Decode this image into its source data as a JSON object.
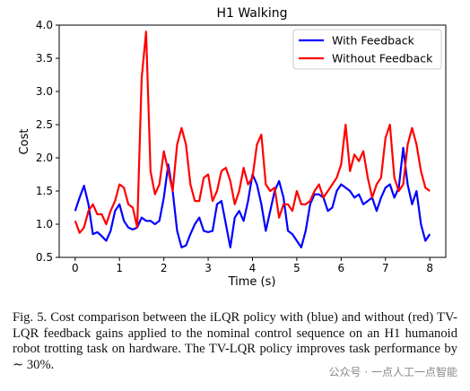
{
  "chart_data": {
    "type": "line",
    "title": "H1 Walking",
    "x_label": "Time (s)",
    "y_label": "Cost",
    "x": [
      0,
      0.1,
      0.2,
      0.3,
      0.4,
      0.5,
      0.6,
      0.7,
      0.8,
      0.9,
      1,
      1.1,
      1.2,
      1.3,
      1.4,
      1.5,
      1.6,
      1.7,
      1.8,
      1.9,
      2,
      2.1,
      2.2,
      2.3,
      2.4,
      2.5,
      2.6,
      2.7,
      2.8,
      2.9,
      3,
      3.1,
      3.2,
      3.3,
      3.4,
      3.5,
      3.6,
      3.7,
      3.8,
      3.9,
      4,
      4.1,
      4.2,
      4.3,
      4.4,
      4.5,
      4.6,
      4.7,
      4.8,
      4.9,
      5,
      5.1,
      5.2,
      5.3,
      5.4,
      5.5,
      5.6,
      5.7,
      5.8,
      5.9,
      6,
      6.1,
      6.2,
      6.3,
      6.4,
      6.5,
      6.6,
      6.7,
      6.8,
      6.9,
      7,
      7.1,
      7.2,
      7.3,
      7.4,
      7.5,
      7.6,
      7.7,
      7.8,
      7.9,
      8
    ],
    "series": [
      {
        "name": "With Feedback",
        "color": "#0000ff",
        "values": [
          1.2,
          1.4,
          1.58,
          1.3,
          0.85,
          0.88,
          0.82,
          0.75,
          0.9,
          1.2,
          1.3,
          1.05,
          0.95,
          0.92,
          0.95,
          1.1,
          1.05,
          1.05,
          1.0,
          1.05,
          1.4,
          1.9,
          1.5,
          0.9,
          0.65,
          0.68,
          0.85,
          1.0,
          1.1,
          0.9,
          0.88,
          0.9,
          1.3,
          1.35,
          1.0,
          0.65,
          1.1,
          1.2,
          1.05,
          1.35,
          1.75,
          1.6,
          1.3,
          0.9,
          1.2,
          1.5,
          1.65,
          1.4,
          0.9,
          0.85,
          0.75,
          0.65,
          0.9,
          1.3,
          1.45,
          1.45,
          1.4,
          1.2,
          1.25,
          1.5,
          1.6,
          1.55,
          1.5,
          1.4,
          1.45,
          1.3,
          1.35,
          1.4,
          1.2,
          1.4,
          1.55,
          1.6,
          1.4,
          1.55,
          2.15,
          1.6,
          1.3,
          1.5,
          1.0,
          0.75,
          0.85
        ]
      },
      {
        "name": "Without Feedback",
        "color": "#ff0000",
        "values": [
          1.05,
          0.87,
          0.95,
          1.2,
          1.3,
          1.15,
          1.15,
          1.0,
          1.2,
          1.35,
          1.6,
          1.55,
          1.3,
          1.25,
          0.95,
          3.2,
          3.9,
          1.8,
          1.45,
          1.6,
          2.1,
          1.8,
          1.5,
          2.2,
          2.45,
          2.2,
          1.6,
          1.35,
          1.35,
          1.7,
          1.75,
          1.35,
          1.5,
          1.8,
          1.85,
          1.65,
          1.3,
          1.5,
          1.85,
          1.6,
          1.7,
          2.2,
          2.35,
          1.6,
          1.5,
          1.55,
          1.1,
          1.3,
          1.3,
          1.2,
          1.5,
          1.3,
          1.3,
          1.35,
          1.5,
          1.6,
          1.4,
          1.5,
          1.6,
          1.7,
          1.9,
          2.5,
          1.8,
          2.05,
          1.95,
          2.1,
          1.7,
          1.4,
          1.6,
          1.7,
          2.3,
          2.5,
          1.7,
          1.5,
          1.6,
          2.2,
          2.45,
          2.2,
          1.8,
          1.55,
          1.5
        ]
      }
    ],
    "xlim": [
      -0.36,
      8.36
    ],
    "ylim": [
      0.5,
      4.0
    ],
    "xticks": [
      0,
      1,
      2,
      3,
      4,
      5,
      6,
      7,
      8
    ],
    "yticks": [
      0.5,
      {
        "value": 1.0,
        "label": "1.0"
      },
      1.5,
      {
        "value": 2.0,
        "label": "2.0"
      },
      2.5,
      {
        "value": 3.0,
        "label": "3.0"
      },
      3.5,
      {
        "value": 4.0,
        "label": "4.0"
      }
    ],
    "grid": false,
    "legend": "upper right"
  },
  "caption": "Fig. 5.   Cost comparison between the iLQR policy with (blue) and without (red) TV-LQR feedback gains applied to the nominal control sequence on an H1 humanoid robot trotting task on hardware. The TV-LQR policy improves task performance by ∼ 30%.",
  "watermark": "公众号 · 一点人工一点智能"
}
